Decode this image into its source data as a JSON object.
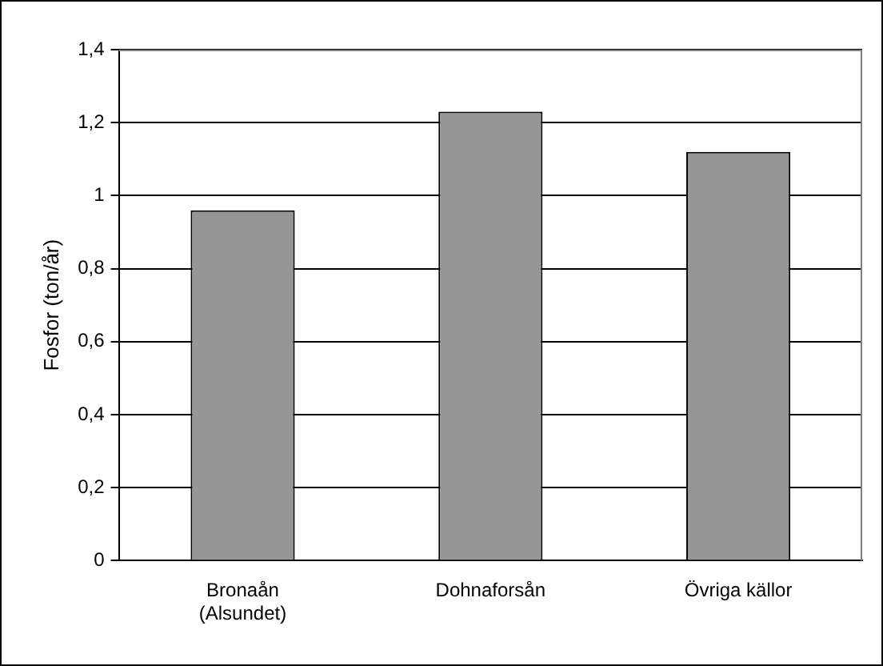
{
  "chart_data": {
    "type": "bar",
    "ylabel": "Fosfor (ton/år)",
    "categories": [
      "Bronaån\n(Alsundet)",
      "Dohnaforsån",
      "Övriga källor"
    ],
    "values": [
      0.96,
      1.23,
      1.12
    ],
    "color": "#969696",
    "ylim": [
      0,
      1.4
    ],
    "yticks": [
      0,
      {
        "value": 0.2,
        "label": "0,2"
      },
      {
        "value": 0.4,
        "label": "0,4"
      },
      {
        "value": 0.6,
        "label": "0,6"
      },
      {
        "value": 0.8,
        "label": "0,8"
      },
      1,
      {
        "value": 1.2,
        "label": "1,2"
      },
      {
        "value": 1.4,
        "label": "1,4"
      }
    ],
    "grid": "y",
    "legend": false
  }
}
